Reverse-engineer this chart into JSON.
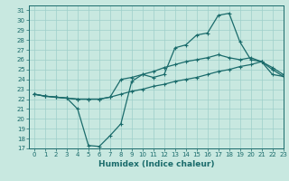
{
  "xlabel": "Humidex (Indice chaleur)",
  "ylabel": "",
  "xlim": [
    -0.5,
    23
  ],
  "ylim": [
    17,
    31.5
  ],
  "xticks": [
    0,
    1,
    2,
    3,
    4,
    5,
    6,
    7,
    8,
    9,
    10,
    11,
    12,
    13,
    14,
    15,
    16,
    17,
    18,
    19,
    20,
    21,
    22,
    23
  ],
  "yticks": [
    17,
    18,
    19,
    20,
    21,
    22,
    23,
    24,
    25,
    26,
    27,
    28,
    29,
    30,
    31
  ],
  "background_color": "#c8e8e0",
  "grid_color": "#9ecfca",
  "line_color": "#1a6b6b",
  "line1_x": [
    0,
    1,
    2,
    3,
    4,
    5,
    6,
    7,
    8,
    9,
    10,
    11,
    12,
    13,
    14,
    15,
    16,
    17,
    18,
    19,
    20,
    21,
    22,
    23
  ],
  "line1_y": [
    22.5,
    22.3,
    22.2,
    22.1,
    21.0,
    17.3,
    17.2,
    18.3,
    19.5,
    23.8,
    24.5,
    24.2,
    24.5,
    27.2,
    27.5,
    28.5,
    28.7,
    30.5,
    30.7,
    27.8,
    26.0,
    25.8,
    25.0,
    24.3
  ],
  "line2_x": [
    0,
    1,
    2,
    3,
    4,
    5,
    6,
    7,
    8,
    9,
    10,
    11,
    12,
    13,
    14,
    15,
    16,
    17,
    18,
    19,
    20,
    21,
    22,
    23
  ],
  "line2_y": [
    22.5,
    22.3,
    22.2,
    22.1,
    22.0,
    22.0,
    22.0,
    22.2,
    24.0,
    24.2,
    24.5,
    24.8,
    25.2,
    25.5,
    25.8,
    26.0,
    26.2,
    26.5,
    26.2,
    26.0,
    26.2,
    25.8,
    25.2,
    24.5
  ],
  "line3_x": [
    0,
    1,
    2,
    3,
    4,
    5,
    6,
    7,
    8,
    9,
    10,
    11,
    12,
    13,
    14,
    15,
    16,
    17,
    18,
    19,
    20,
    21,
    22,
    23
  ],
  "line3_y": [
    22.5,
    22.3,
    22.2,
    22.1,
    22.0,
    22.0,
    22.0,
    22.2,
    22.5,
    22.8,
    23.0,
    23.3,
    23.5,
    23.8,
    24.0,
    24.2,
    24.5,
    24.8,
    25.0,
    25.3,
    25.5,
    25.8,
    24.5,
    24.3
  ]
}
